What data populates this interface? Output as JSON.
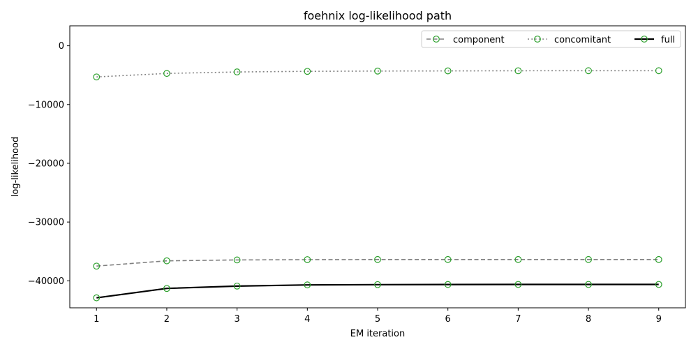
{
  "chart_data": {
    "type": "line",
    "title": "foehnix log-likelihood path",
    "xlabel": "EM iteration",
    "ylabel": "log-likelihood",
    "x": [
      1,
      2,
      3,
      4,
      5,
      6,
      7,
      8,
      9
    ],
    "xlim": [
      0.62,
      9.38
    ],
    "ylim": [
      -44600,
      3400
    ],
    "x_ticks": [
      1,
      2,
      3,
      4,
      5,
      6,
      7,
      8,
      9
    ],
    "y_ticks": [
      0,
      -10000,
      -20000,
      -30000,
      -40000
    ],
    "y_tick_labels": [
      "0",
      "−10000",
      "−20000",
      "−30000",
      "−40000"
    ],
    "grid": false,
    "legend_position": "top-right",
    "marker": {
      "shape": "open-circle",
      "color": "#2ca02c"
    },
    "series": [
      {
        "name": "component",
        "style": "dashed",
        "color": "#808080",
        "values": [
          -37500,
          -36600,
          -36450,
          -36400,
          -36380,
          -36380,
          -36380,
          -36380,
          -36380
        ]
      },
      {
        "name": "concomitant",
        "style": "dotted",
        "color": "#808080",
        "values": [
          -5300,
          -4700,
          -4450,
          -4350,
          -4300,
          -4270,
          -4250,
          -4240,
          -4240
        ]
      },
      {
        "name": "full",
        "style": "solid",
        "color": "#000000",
        "values": [
          -42900,
          -41300,
          -40900,
          -40700,
          -40650,
          -40630,
          -40620,
          -40620,
          -40620
        ]
      }
    ]
  }
}
